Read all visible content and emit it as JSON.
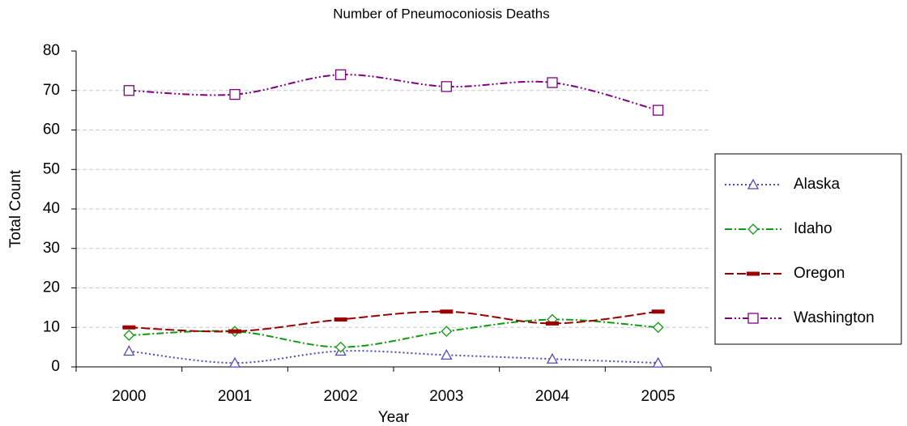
{
  "chart_data": {
    "type": "line",
    "title": "Number of Pneumoconiosis Deaths",
    "x_label": "Year",
    "y_label": "Total Count",
    "categories": [
      "2000",
      "2001",
      "2002",
      "2003",
      "2004",
      "2005"
    ],
    "series": [
      {
        "name": "Alaska",
        "color": "#4a4ab8",
        "dash": "dotted",
        "marker": "triangle",
        "values": [
          4,
          1,
          4,
          3,
          2,
          1
        ]
      },
      {
        "name": "Idaho",
        "color": "#109a10",
        "dash": "dash-dot",
        "marker": "diamond",
        "values": [
          8,
          9,
          5,
          9,
          12,
          10
        ]
      },
      {
        "name": "Oregon",
        "color": "#990000",
        "dash": "long-dash",
        "marker": "bar",
        "values": [
          10,
          9,
          12,
          14,
          11,
          14
        ]
      },
      {
        "name": "Washington",
        "color": "#800080",
        "dash": "dash-dot-dot",
        "marker": "square",
        "values": [
          70,
          69,
          74,
          71,
          72,
          65
        ]
      }
    ],
    "ylim": [
      0,
      80
    ],
    "yticks": [
      0,
      10,
      20,
      30,
      40,
      50,
      60,
      70,
      80
    ],
    "grid": true,
    "smooth": true,
    "legend": "right"
  }
}
